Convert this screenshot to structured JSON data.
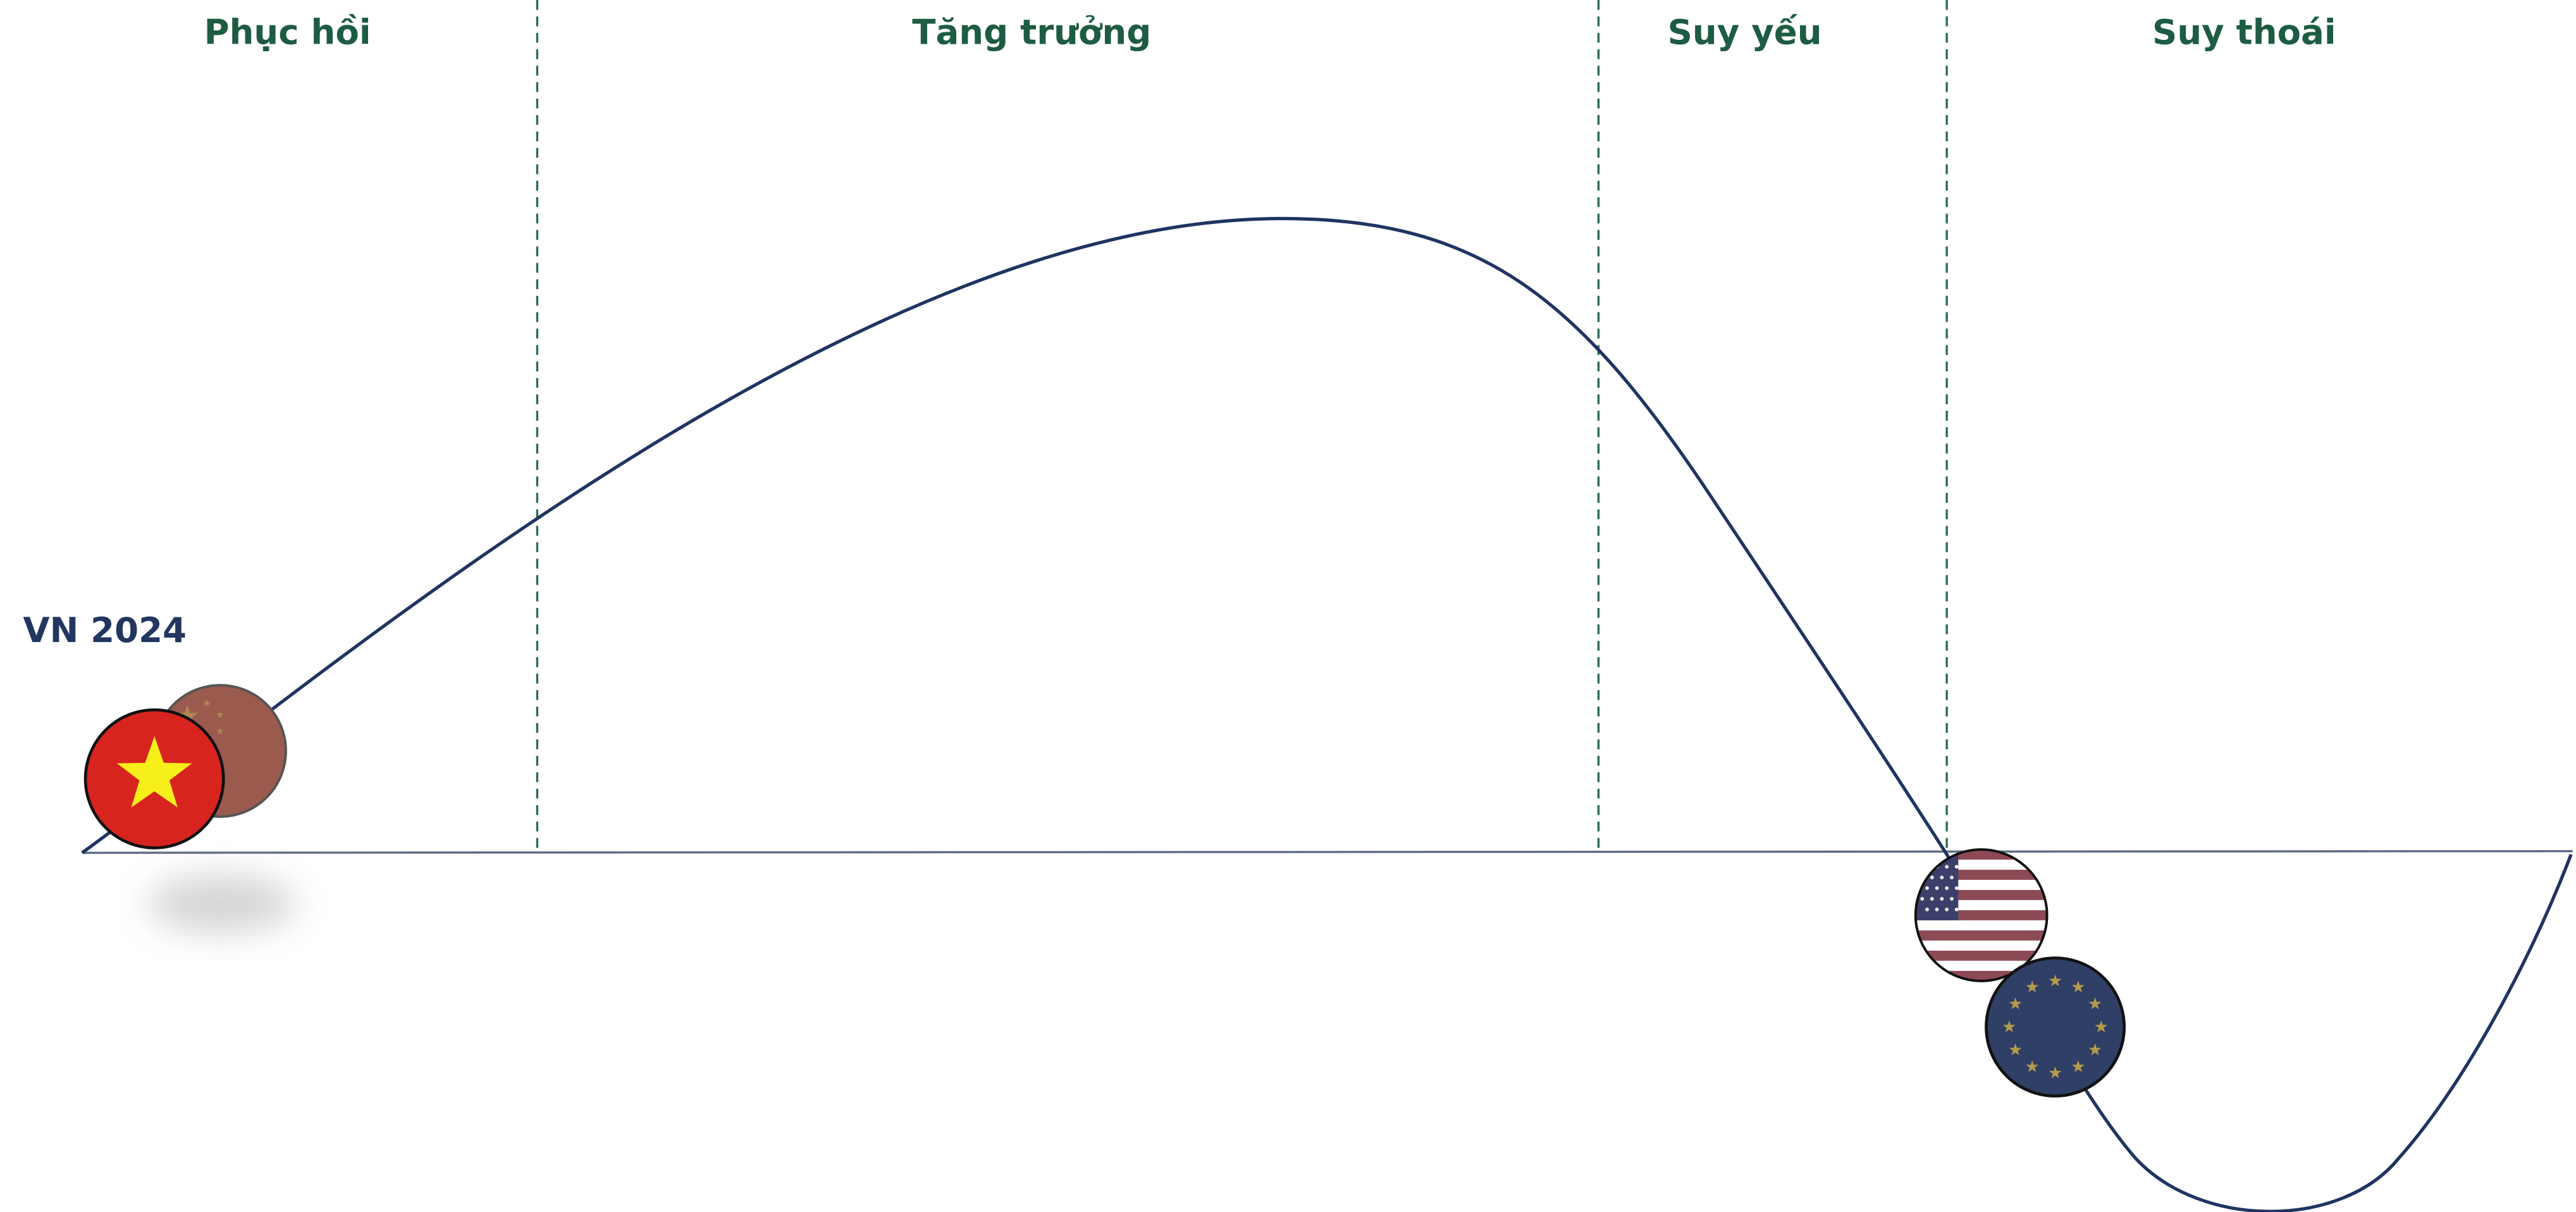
{
  "phases": [
    {
      "label": "Phục hồi"
    },
    {
      "label": "Tăng trưởng"
    },
    {
      "label": "Suy yếu"
    },
    {
      "label": "Suy thoái"
    }
  ],
  "marker_label": "VN 2024"
}
